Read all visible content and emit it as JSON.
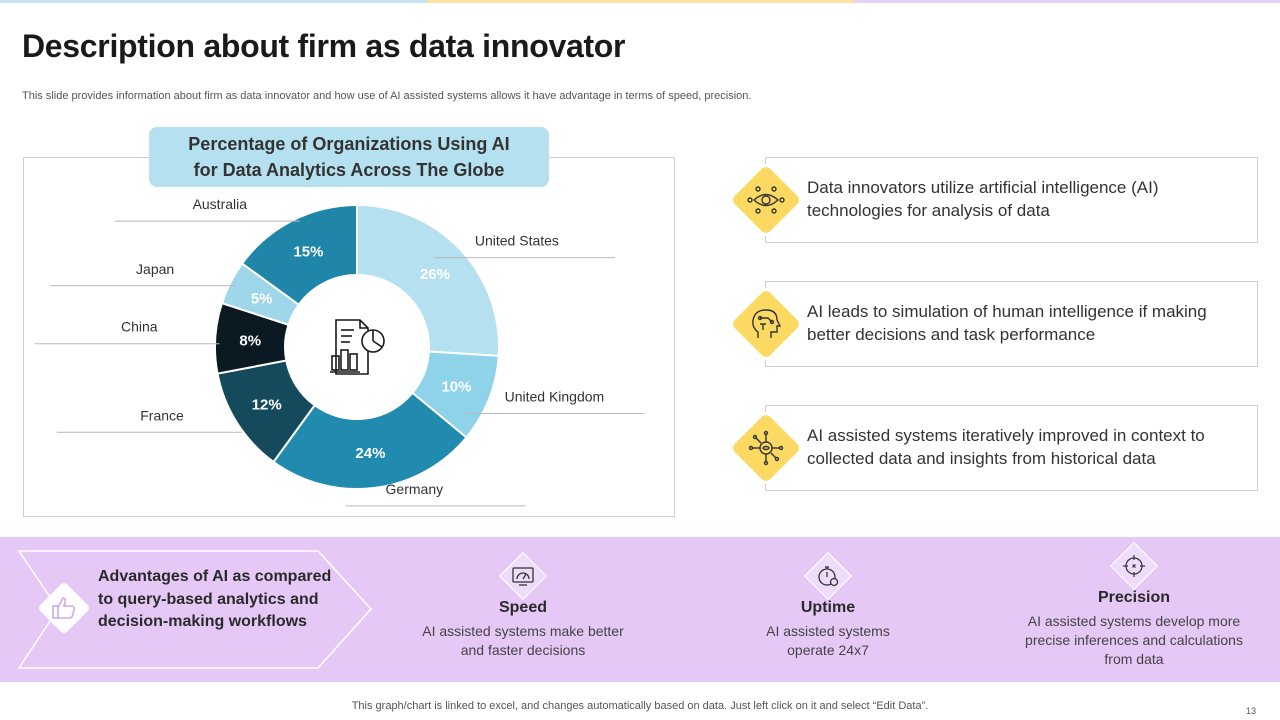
{
  "slide": {
    "title": "Description about firm as data innovator",
    "subtitle": "This slide provides information about firm as data innovator and how use of AI assisted systems allows it have advantage in terms of speed, precision.",
    "footer": "This graph/chart is linked to excel, and changes automatically based on data. Just left click on it and select “Edit Data”.",
    "page_number": "13"
  },
  "colors": {
    "top_bar": [
      "#c7e3f3",
      "#fbe3a0",
      "#e6d2f4"
    ],
    "accent_yellow": "#fbd963",
    "band_purple": "#e6c8f6"
  },
  "chart_data": {
    "type": "pie",
    "donut": true,
    "title": "Percentage of Organizations  Using AI for Data Analytics Across The Globe",
    "center_icon": "report-chart-icon",
    "categories": [
      "United States",
      "United Kingdom",
      "Germany",
      "France",
      "China",
      "Japan",
      "Australia"
    ],
    "values": [
      26,
      10,
      24,
      12,
      8,
      5,
      15
    ],
    "value_labels": [
      "26%",
      "10%",
      "24%",
      "12%",
      "8%",
      "5%",
      "15%"
    ],
    "colors": [
      "#b5e0ef",
      "#8fd3ea",
      "#218aaf",
      "#154a5c",
      "#0b1a22",
      "#9fd6ea",
      "#1f86aa"
    ],
    "label_colors": [
      "#ffffff",
      "#ffffff",
      "#ffffff",
      "#ffffff",
      "#ffffff",
      "#ffffff",
      "#ffffff"
    ]
  },
  "features": [
    {
      "text": "Data innovators utilize artificial intelligence  (AI) technologies for analysis of data",
      "icon": "eye-network-icon"
    },
    {
      "text": "AI leads to simulation of human intelligence  if making better decisions and task performance",
      "icon": "ai-head-icon"
    },
    {
      "text": "AI assisted systems iteratively improved in context to collected data and insights from historical data",
      "icon": "data-hub-icon"
    }
  ],
  "advantages": {
    "heading": "Advantages of AI as compared to query-based analytics and decision-making workflows",
    "icon": "thumbs-up-icon",
    "items": [
      {
        "title": "Speed",
        "desc": "AI assisted systems make better and faster decisions",
        "icon": "speedometer-icon"
      },
      {
        "title": "Uptime",
        "desc": "AI assisted systems operate 24x7",
        "icon": "stopwatch-icon"
      },
      {
        "title": "Precision",
        "desc": "AI assisted systems develop more precise inferences and calculations from data",
        "icon": "crosshair-icon"
      }
    ]
  }
}
